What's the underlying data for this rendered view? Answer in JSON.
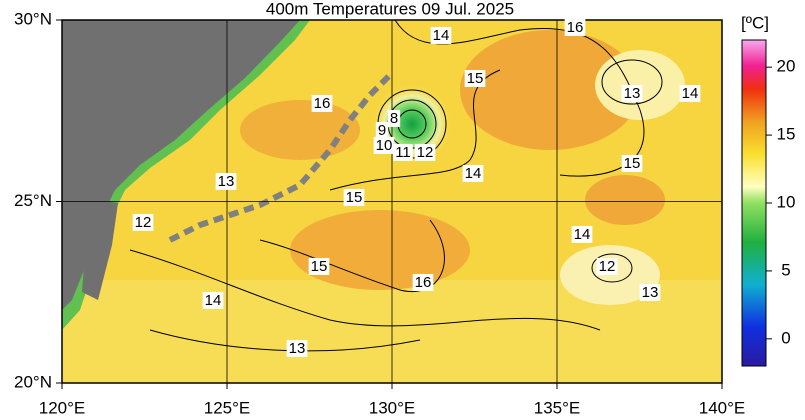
{
  "title": "400m Temperatures  09 Jul. 2025",
  "map": {
    "xlim": [
      120,
      140
    ],
    "ylim": [
      20,
      30
    ],
    "xticks": [
      {
        "value": 120,
        "label": "120°E"
      },
      {
        "value": 125,
        "label": "125°E"
      },
      {
        "value": 130,
        "label": "130°E"
      },
      {
        "value": 135,
        "label": "135°E"
      },
      {
        "value": 140,
        "label": "140°E"
      }
    ],
    "yticks": [
      {
        "value": 20,
        "label": "20°N"
      },
      {
        "value": 25,
        "label": "25°N"
      },
      {
        "value": 30,
        "label": "30°N"
      }
    ],
    "contour_labels": [
      "14",
      "16",
      "15",
      "16",
      "8",
      "9",
      "10",
      "11",
      "12",
      "13",
      "14",
      "14",
      "15",
      "13",
      "15",
      "12",
      "14",
      "15",
      "16",
      "12",
      "13",
      "14",
      "13"
    ]
  },
  "colorbar": {
    "unit": "[ºC]",
    "lim": [
      -2,
      22
    ],
    "ticks": [
      0,
      5,
      10,
      15,
      20
    ]
  }
}
